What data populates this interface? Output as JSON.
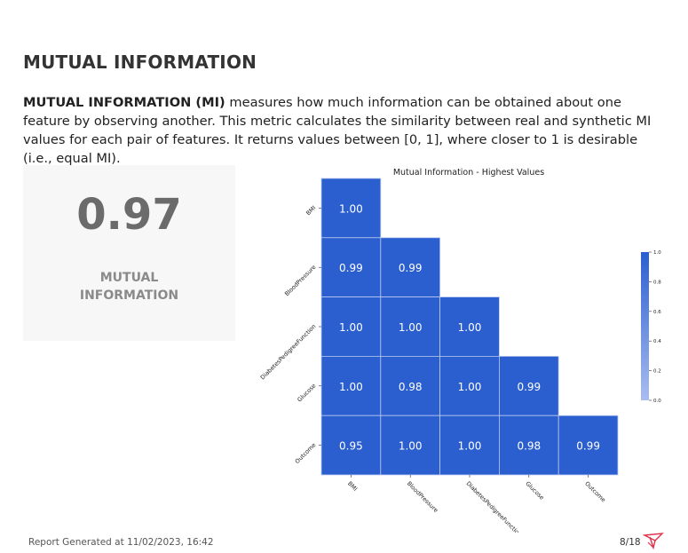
{
  "page": {
    "title": "MUTUAL INFORMATION",
    "description_bold": "MUTUAL INFORMATION (MI)",
    "description_rest": " measures how much information can be obtained about one feature by observing another. This metric calculates the similarity between real and synthetic MI values for each pair of features. It returns values between [0, 1], where closer to 1 is desirable (i.e., equal MI)."
  },
  "kpi": {
    "value": "0.97",
    "label": "MUTUAL INFORMATION"
  },
  "footer": {
    "generated": "Report Generated at 11/02/2023, 16:42",
    "page": "8/18"
  },
  "icons": {
    "logo": "ydata-logo-icon"
  },
  "colors": {
    "cell": "#2b5fd0",
    "title": "#333333",
    "kpi_text": "#6b6b6b"
  },
  "chart_data": {
    "type": "heatmap",
    "title": "Mutual Information - Highest Values",
    "rows": [
      "BMI",
      "BloodPressure",
      "DiabetesPedigreeFunction",
      "Glucose",
      "Outcome"
    ],
    "cols": [
      "BMI",
      "BloodPressure",
      "DiabetesPedigreeFunction",
      "Glucose",
      "Outcome"
    ],
    "values": [
      [
        "1.00"
      ],
      [
        "0.99",
        "0.99"
      ],
      [
        "1.00",
        "1.00",
        "1.00"
      ],
      [
        "1.00",
        "0.98",
        "1.00",
        "0.99"
      ],
      [
        "0.95",
        "1.00",
        "1.00",
        "0.98",
        "0.99"
      ]
    ],
    "colorbar": {
      "range": [
        0.0,
        1.0
      ],
      "ticks": [
        "0.0",
        "0.2",
        "0.4",
        "0.6",
        "0.8",
        "1.0"
      ]
    },
    "mask": "lower-triangular"
  }
}
